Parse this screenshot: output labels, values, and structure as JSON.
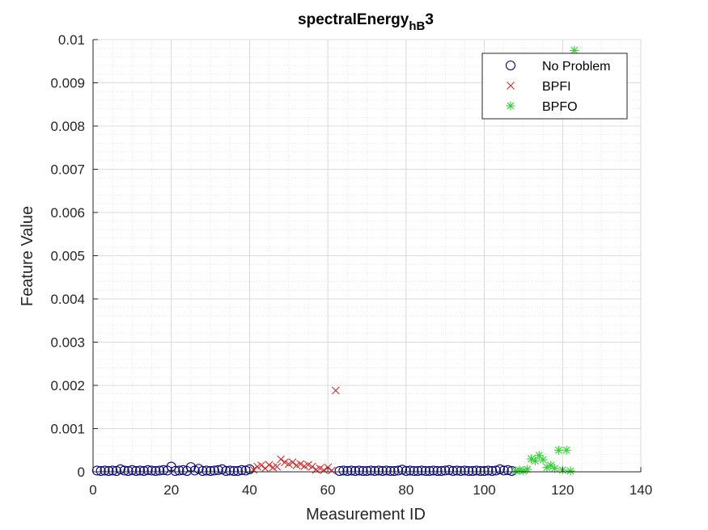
{
  "chart_data": {
    "type": "scatter",
    "title": {
      "base": "spectralEnergy",
      "subscript": "hB",
      "suffix": "3"
    },
    "xlabel": "Measurement ID",
    "ylabel": "Feature Value",
    "xlim": [
      0,
      140
    ],
    "ylim": [
      0,
      0.01
    ],
    "xticks": [
      0,
      20,
      40,
      60,
      80,
      100,
      120,
      140
    ],
    "xtick_labels": [
      "0",
      "20",
      "40",
      "60",
      "80",
      "100",
      "120",
      "140"
    ],
    "yticks": [
      0,
      0.001,
      0.002,
      0.003,
      0.004,
      0.005,
      0.006,
      0.007,
      0.008,
      0.009,
      0.01
    ],
    "ytick_labels": [
      "0",
      "0.001",
      "0.002",
      "0.003",
      "0.004",
      "0.005",
      "0.006",
      "0.007",
      "0.008",
      "0.009",
      "0.01"
    ],
    "grid": true,
    "minor_grid": true,
    "legend_position": "top-right",
    "series": [
      {
        "name": "No Problem",
        "marker": "circle",
        "color": "#00007f",
        "x": [
          1,
          2,
          3,
          4,
          5,
          6,
          7,
          8,
          9,
          10,
          11,
          12,
          13,
          14,
          15,
          16,
          17,
          18,
          19,
          20,
          21,
          22,
          23,
          24,
          25,
          26,
          27,
          28,
          29,
          30,
          31,
          32,
          33,
          34,
          35,
          36,
          37,
          38,
          39,
          40,
          63,
          64,
          65,
          66,
          67,
          68,
          69,
          70,
          71,
          72,
          73,
          74,
          75,
          76,
          77,
          78,
          79,
          80,
          81,
          82,
          83,
          84,
          85,
          86,
          87,
          88,
          89,
          90,
          91,
          92,
          93,
          94,
          95,
          96,
          97,
          98,
          99,
          100,
          101,
          102,
          103,
          104,
          105,
          106,
          107
        ],
        "y": [
          3e-05,
          2e-05,
          3e-05,
          2e-05,
          3e-05,
          2e-05,
          6e-05,
          3e-05,
          2e-05,
          4e-05,
          2e-05,
          3e-05,
          2e-05,
          4e-05,
          3e-05,
          2e-05,
          3e-05,
          4e-05,
          3e-05,
          0.00012,
          2e-05,
          3e-05,
          4e-05,
          2e-05,
          0.00011,
          3e-05,
          7e-05,
          2e-05,
          3e-05,
          2e-05,
          3e-05,
          4e-05,
          6e-05,
          2e-05,
          3e-05,
          2e-05,
          2e-05,
          4e-05,
          3e-05,
          6e-05,
          2e-05,
          3e-05,
          2e-05,
          3e-05,
          2e-05,
          3e-05,
          2e-05,
          2e-05,
          3e-05,
          2e-05,
          3e-05,
          2e-05,
          3e-05,
          2e-05,
          2e-05,
          3e-05,
          5e-05,
          2e-05,
          3e-05,
          2e-05,
          2e-05,
          3e-05,
          2e-05,
          2e-05,
          3e-05,
          2e-05,
          2e-05,
          3e-05,
          4e-05,
          2e-05,
          3e-05,
          2e-05,
          3e-05,
          2e-05,
          2e-05,
          3e-05,
          2e-05,
          2e-05,
          3e-05,
          2e-05,
          3e-05,
          6e-05,
          3e-05,
          4e-05,
          2e-05
        ]
      },
      {
        "name": "BPFI",
        "marker": "x",
        "color": "#d62728",
        "x": [
          41,
          42,
          43,
          44,
          45,
          46,
          47,
          48,
          49,
          50,
          51,
          52,
          53,
          54,
          55,
          56,
          57,
          58,
          59,
          60,
          61,
          62
        ],
        "y": [
          5e-05,
          0.00012,
          0.00015,
          8e-05,
          0.00016,
          0.0001,
          0.00012,
          0.00029,
          0.00022,
          0.00018,
          0.00022,
          0.00015,
          0.00018,
          0.00013,
          0.00016,
          0.00012,
          5e-05,
          8e-05,
          4e-05,
          0.0001,
          3e-05,
          0.00188
        ]
      },
      {
        "name": "BPFO",
        "marker": "star",
        "color": "#2ed12e",
        "x": [
          108,
          109,
          110,
          111,
          112,
          113,
          114,
          115,
          116,
          117,
          118,
          119,
          120,
          121,
          122,
          123
        ],
        "y": [
          2e-05,
          4e-05,
          2e-05,
          6e-05,
          0.0003,
          0.00025,
          0.00038,
          0.00028,
          0.0001,
          0.00015,
          8e-05,
          0.0005,
          4e-05,
          0.0005,
          2e-05,
          0.00975
        ]
      }
    ]
  }
}
